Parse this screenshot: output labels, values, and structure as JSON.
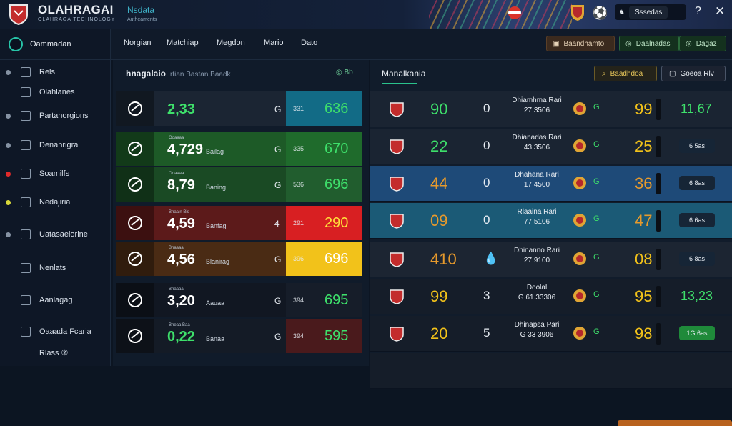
{
  "app": {
    "title": "OLAHRAGAI",
    "subtitle": "OLAHRAGA TECHNOLOGY",
    "mark": "Nsdata",
    "mark_sub": "Autheaments"
  },
  "topbar": {
    "pill_value": "Sssedas",
    "pill_icon": "♞"
  },
  "sidebar": {
    "header": "Oammadan",
    "items": [
      {
        "label": "Rels",
        "dot": "#8592a3"
      },
      {
        "label": "Olahlanes",
        "dot": ""
      },
      {
        "label": "Partahorgions",
        "dot": "#8592a3"
      },
      {
        "label": "Denahrigra",
        "dot": "#8592a3"
      },
      {
        "label": "Soamilfs",
        "dot": "#e02a2a"
      },
      {
        "label": "Nedajiria",
        "dot": "#d8d83a"
      },
      {
        "label": "Uatasaelorine",
        "dot": "#8592a3"
      },
      {
        "label": "Nenlats",
        "dot": ""
      },
      {
        "label": "Aanlagag",
        "dot": ""
      },
      {
        "label": "Oaaada Fcaria",
        "dot": ""
      },
      {
        "label": "Rlass ②",
        "dot": ""
      }
    ]
  },
  "nav": {
    "items": [
      "Norgian",
      "Matchiap",
      "Megdon",
      "Mario",
      "Dato"
    ],
    "buttons": [
      "Baandhamto",
      "Daalnadas",
      "Dagaz"
    ]
  },
  "left_panel": {
    "title": "hnagalaio",
    "title_extra": "rtian  Bastan  Baadk",
    "header_badge": "Bb",
    "rows": [
      {
        "small": "",
        "big": "2,33",
        "tag": "",
        "n": "G",
        "odd_small": "331",
        "odd_big": "636",
        "bg": "#1b2533",
        "odd_bg": "#126b86",
        "big_color": "#3ee06b",
        "odd_color": "#3ee06b"
      },
      {
        "small": "Ooaaaa",
        "big": "4,729",
        "tag": "Bailag",
        "n": "G",
        "odd_small": "335",
        "odd_big": "670",
        "bg": "#1d5a27",
        "odd_bg": "#1f6b2c",
        "big_color": "#ffffff",
        "odd_color": "#3ee06b"
      },
      {
        "small": "Ooaaaa",
        "big": "8,79",
        "tag": "Baning",
        "n": "G",
        "odd_small": "536",
        "odd_big": "696",
        "bg": "#1a4a24",
        "odd_bg": "#215d2e",
        "big_color": "#ffffff",
        "odd_color": "#3ee06b"
      },
      {
        "small": "Bnaaln Bis",
        "big": "4,59",
        "tag": "Banfag",
        "n": "4",
        "odd_small": "291",
        "odd_big": "290",
        "bg": "#5c1a1a",
        "odd_bg": "#d81f22",
        "big_color": "#ffffff",
        "odd_color": "#ffde3a"
      },
      {
        "small": "Bnaaaa",
        "big": "4,56",
        "tag": "Blanirag",
        "n": "G",
        "odd_small": "396",
        "odd_big": "696",
        "bg": "#4a2b14",
        "odd_bg": "#f2c21a",
        "big_color": "#ffffff",
        "odd_color": "#ffffff"
      },
      {
        "small": "Bnaaaa",
        "big": "3,20",
        "tag": "Aauaa",
        "n": "G",
        "odd_small": "394",
        "odd_big": "695",
        "bg": "#111722",
        "odd_bg": "#161d29",
        "big_color": "#ffffff",
        "odd_color": "#3ee06b"
      },
      {
        "small": "Bneaa Baa",
        "big": "0,22",
        "tag": "Banaa",
        "n": "G",
        "odd_small": "394",
        "odd_big": "595",
        "bg": "#141b26",
        "odd_bg": "#4a1a1c",
        "big_color": "#3ee06b",
        "odd_color": "#3ee06b"
      }
    ]
  },
  "right_panel": {
    "title": "Manalkania",
    "buttons": [
      "Baadhdoa",
      "Goeoa Rlv"
    ],
    "rows": [
      {
        "s1": "90",
        "s1c": "#3ee06b",
        "z": "0",
        "name": "Dhiamhma Rari",
        "sub": "27 3506",
        "ic2": "G",
        "s2": "99",
        "s2c": "#f2c21a",
        "val": "11,67",
        "valc": "#3ee06b",
        "chip": "",
        "bg": "#1a2432"
      },
      {
        "s1": "22",
        "s1c": "#3ee06b",
        "z": "0",
        "name": "Dhianadas Rari",
        "sub": "43 3506",
        "ic2": "G",
        "s2": "25",
        "s2c": "#f2c21a",
        "val": "",
        "valc": "",
        "chip": "6 5as",
        "bg": "#1a2432"
      },
      {
        "s1": "44",
        "s1c": "#e79a2c",
        "z": "0",
        "name": "Dhahana Rari",
        "sub": "17 4500",
        "ic2": "G",
        "s2": "36",
        "s2c": "#e79a2c",
        "val": "",
        "valc": "",
        "chip": "6 8as",
        "bg": "#1e4a78"
      },
      {
        "s1": "09",
        "s1c": "#e79a2c",
        "z": "0",
        "name": "Rlaaina Rari",
        "sub": "77 5106",
        "ic2": "G",
        "s2": "47",
        "s2c": "#e79a2c",
        "val": "",
        "valc": "",
        "chip": "6 6as",
        "bg": "#1b5a76"
      },
      {
        "s1": "410",
        "s1c": "#e79a2c",
        "z": "💧",
        "name": "Dhinanno Rari",
        "sub": "27 9100",
        "ic2": "G",
        "s2": "08",
        "s2c": "#f2c21a",
        "val": "",
        "valc": "",
        "chip": "6 8as",
        "bg": "#1c2532"
      },
      {
        "s1": "99",
        "s1c": "#f2c21a",
        "z": "3",
        "name": "Doolal",
        "sub": "G 61.33306",
        "ic2": "G",
        "s2": "95",
        "s2c": "#f2c21a",
        "val": "13,23",
        "valc": "#3ee06b",
        "chip": "",
        "bg": "#151d29"
      },
      {
        "s1": "20",
        "s1c": "#f2c21a",
        "z": "5",
        "name": "Dhinapsa Pari",
        "sub": "G 33 3906",
        "ic2": "G",
        "s2": "98",
        "s2c": "#f2c21a",
        "val": "",
        "valc": "",
        "chip": "1G 6as",
        "bg": "#151d29"
      },
      {
        "s1": "",
        "s1c": "",
        "z": "",
        "name": "",
        "sub": "",
        "ic2": "",
        "s2": "",
        "s2c": "",
        "val": "",
        "valc": "",
        "chip": "",
        "bg": "#151d29"
      }
    ]
  }
}
